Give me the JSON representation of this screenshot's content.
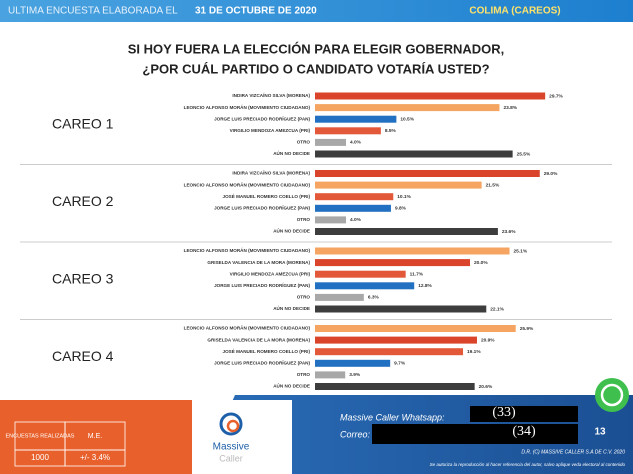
{
  "header": {
    "left": "ULTIMA ENCUESTA ELABORADA EL",
    "date": "31 DE OCTUBRE DE 2020",
    "right": "COLIMA (CAREOS)"
  },
  "title": [
    "SI HOY FUERA LA ELECCIÓN PARA ELEGIR GOBERNADOR,",
    "¿POR CUÁL PARTIDO O CANDIDATO VOTARÍA USTED?"
  ],
  "chart_data": [
    {
      "type": "bar",
      "title": "CAREO 1",
      "categories": [
        "INDIRA VIZCAÍNO SILVA (MORENA)",
        "LEONCIO ALFONSO MORÁN (MOVIMIENTO CIUDADANO)",
        "JORGE LUIS PRECIADO RODRÍGUEZ (PAN)",
        "VIRGILIO MENDOZA AMEZCUA (PRI)",
        "OTRO",
        "AÚN NO DECIDE"
      ],
      "values": [
        29.7,
        23.8,
        10.5,
        8.5,
        4.0,
        25.5
      ],
      "value_labels": [
        "29.7%",
        "23.8%",
        "10.5%",
        "8.5%",
        "4.0%",
        "25.5%"
      ],
      "colors": [
        "#d9442a",
        "#f5a561",
        "#2270c2",
        "#e4583a",
        "#a8a8a8",
        "#3d3d3d"
      ]
    },
    {
      "type": "bar",
      "title": "CAREO 2",
      "categories": [
        "INDIRA VIZCAÍNO SILVA (MORENA)",
        "LEONCIO ALFONSO MORÁN (MOVIMIENTO CIUDADANO)",
        "JOSÉ MANUEL ROMERO COELLO (PRI)",
        "JORGE LUIS PRECIADO RODRÍGUEZ (PAN)",
        "OTRO",
        "AÚN NO DECIDE"
      ],
      "values": [
        29.0,
        21.5,
        10.1,
        9.8,
        4.0,
        23.6
      ],
      "value_labels": [
        "29.0%",
        "21.5%",
        "10.1%",
        "9.8%",
        "4.0%",
        "23.6%"
      ],
      "colors": [
        "#d9442a",
        "#f5a561",
        "#e4583a",
        "#2270c2",
        "#a8a8a8",
        "#3d3d3d"
      ]
    },
    {
      "type": "bar",
      "title": "CAREO 3",
      "categories": [
        "LEONCIO ALFONSO MORÁN (MOVIMIENTO CIUDADANO)",
        "GRISELDA VALENCIA DE LA MORA (MORENA)",
        "VIRGILIO MENDOZA AMEZCUA (PRI)",
        "JORGE LUIS PRECIADO RODRÍGUEZ (PAN)",
        "OTRO",
        "AÚN NO DECIDE"
      ],
      "values": [
        25.1,
        20.0,
        11.7,
        12.8,
        6.3,
        22.1
      ],
      "value_labels": [
        "25.1%",
        "20.0%",
        "11.7%",
        "12.8%",
        "6.3%",
        "22.1%"
      ],
      "colors": [
        "#f5a561",
        "#d9442a",
        "#e4583a",
        "#2270c2",
        "#a8a8a8",
        "#3d3d3d"
      ]
    },
    {
      "type": "bar",
      "title": "CAREO 4",
      "categories": [
        "LEONCIO ALFONSO MORÁN (MOVIMIENTO CIUDADANO)",
        "GRISELDA VALENCIA DE LA MORA (MORENA)",
        "JOSÉ MANUEL ROMERO COELLO (PRI)",
        "JORGE LUIS PRECIADO RODRÍGUEZ (PAN)",
        "OTRO",
        "AÚN NO DECIDE"
      ],
      "values": [
        25.9,
        20.9,
        19.1,
        9.7,
        3.9,
        20.6
      ],
      "value_labels": [
        "25.9%",
        "20.9%",
        "19.1%",
        "9.7%",
        "3.9%",
        "20.6%"
      ],
      "colors": [
        "#f5a561",
        "#d9442a",
        "#e4583a",
        "#2270c2",
        "#a8a8a8",
        "#3d3d3d"
      ]
    }
  ],
  "footer": {
    "table": {
      "headers": [
        "ENCUESTAS REALIZADAS",
        "M.E."
      ],
      "values": [
        "1000",
        "+/- 3.4%"
      ]
    },
    "logo": [
      "Massive",
      "Caller"
    ],
    "whatsapp": "Massive Caller Whatsapp:",
    "email": "Correo:",
    "phones": [
      "(33)",
      "(34)"
    ],
    "page": "13",
    "copyright": "D.R. (C) MASSIVE CALLER S.A DE C.V. 2020",
    "note": "Se autoriza la reproducción al hacer referencia del autor, salvo aplique veda electoral al contenido"
  }
}
